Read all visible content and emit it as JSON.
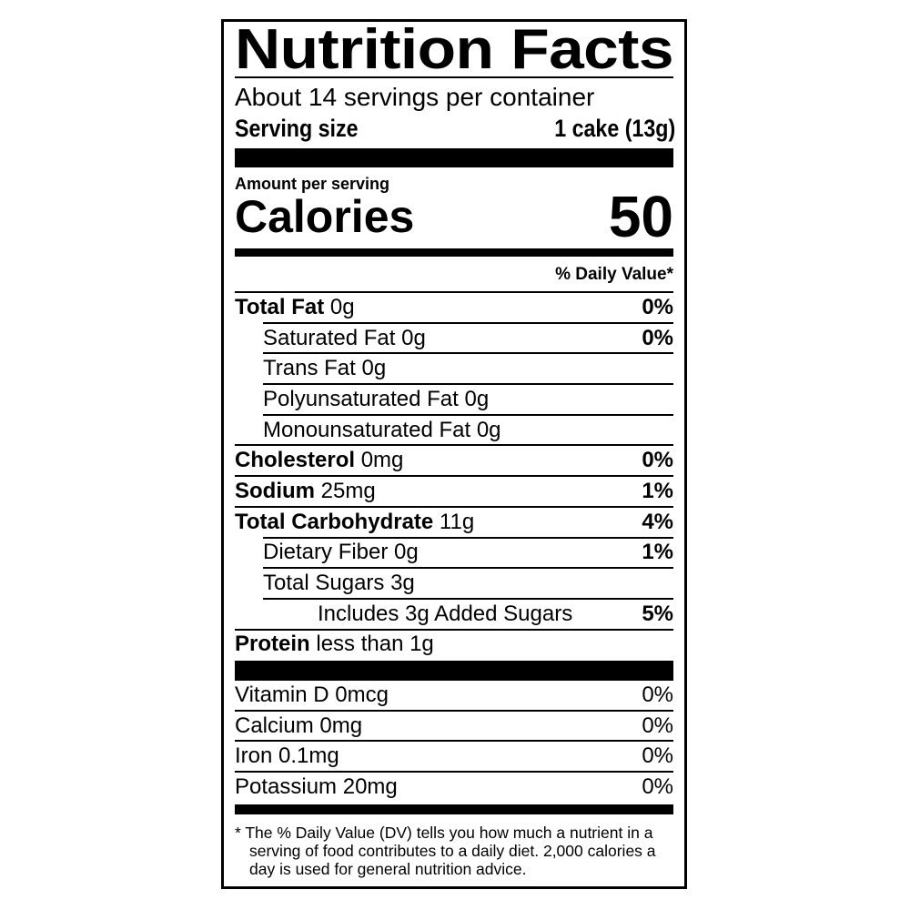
{
  "title": "Nutrition Facts",
  "servings_per_container": "About 14 servings per container",
  "serving_size": {
    "label": "Serving size",
    "value": "1 cake (13g)"
  },
  "amount_per_serving": "Amount per serving",
  "calories": {
    "label": "Calories",
    "value": "50"
  },
  "daily_value_header": "% Daily Value*",
  "nutrients": [
    {
      "name": "Total Fat",
      "amount": "0g",
      "dv": "0%",
      "bold": true,
      "indent": 0
    },
    {
      "name": "Saturated Fat",
      "amount": "0g",
      "dv": "0%",
      "bold": false,
      "indent": 1
    },
    {
      "name": "Trans Fat",
      "amount": "0g",
      "dv": "",
      "bold": false,
      "indent": 1
    },
    {
      "name": "Polyunsaturated Fat",
      "amount": "0g",
      "dv": "",
      "bold": false,
      "indent": 1
    },
    {
      "name": "Monounsaturated Fat",
      "amount": "0g",
      "dv": "",
      "bold": false,
      "indent": 1
    },
    {
      "name": "Cholesterol",
      "amount": "0mg",
      "dv": "0%",
      "bold": true,
      "indent": 0
    },
    {
      "name": "Sodium",
      "amount": "25mg",
      "dv": "1%",
      "bold": true,
      "indent": 0
    },
    {
      "name": "Total Carbohydrate",
      "amount": "11g",
      "dv": "4%",
      "bold": true,
      "indent": 0
    },
    {
      "name": "Dietary Fiber",
      "amount": "0g",
      "dv": "1%",
      "bold": false,
      "indent": 1
    },
    {
      "name": "Total Sugars",
      "amount": "3g",
      "dv": "",
      "bold": false,
      "indent": 1
    },
    {
      "name": "Includes 3g Added Sugars",
      "amount": "",
      "dv": "5%",
      "bold": false,
      "indent": 2
    },
    {
      "name": "Protein",
      "amount": "less than 1g",
      "dv": "",
      "bold": true,
      "indent": 0
    }
  ],
  "vitamins": [
    {
      "name": "Vitamin D",
      "amount": "0mcg",
      "dv": "0%"
    },
    {
      "name": "Calcium",
      "amount": "0mg",
      "dv": "0%"
    },
    {
      "name": "Iron",
      "amount": "0.1mg",
      "dv": "0%"
    },
    {
      "name": "Potassium",
      "amount": "20mg",
      "dv": "0%"
    }
  ],
  "footnote": "* The % Daily Value (DV) tells you how much a nutrient in a serving of food contributes to a daily diet. 2,000 calories a day is used for general nutrition advice."
}
